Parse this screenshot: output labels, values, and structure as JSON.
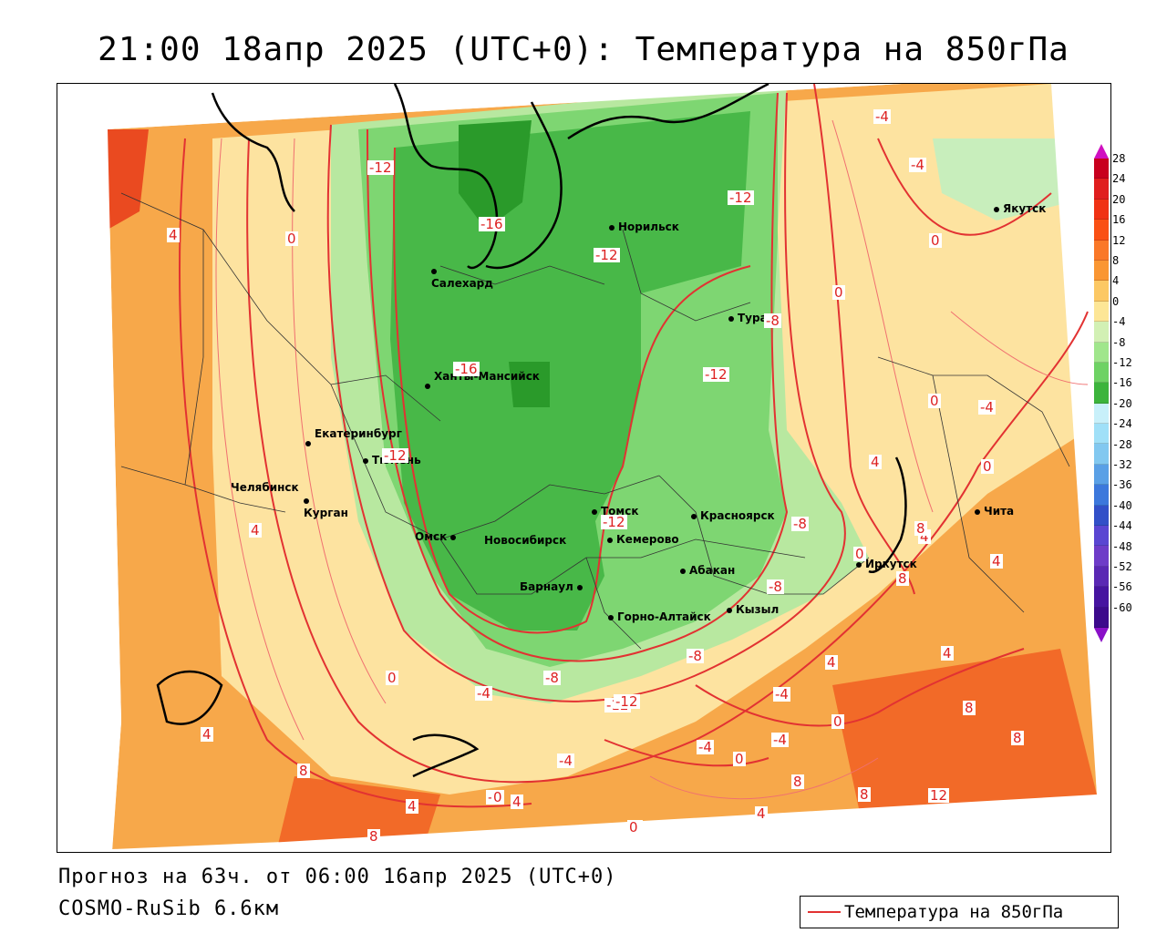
{
  "title": "21:00 18апр 2025 (UTC+0): Температура на 850гПа",
  "footer": {
    "forecast": "Прогноз на 63ч. от 06:00 16апр 2025 (UTC+0)",
    "model": "COSMO-RuSib 6.6км"
  },
  "legend": {
    "line_label": "Температура на 850гПа",
    "line_color": "#e23232"
  },
  "color_scale": {
    "ticks": [
      "28",
      "24",
      "20",
      "16",
      "12",
      "8",
      "4",
      "0",
      "-4",
      "-8",
      "-12",
      "-16",
      "-20",
      "-24",
      "-28",
      "-32",
      "-36",
      "-40",
      "-44",
      "-48",
      "-52",
      "-56",
      "-60"
    ],
    "colors": [
      "#c8001e",
      "#e01e1e",
      "#f03214",
      "#fa5014",
      "#fa7828",
      "#fa9632",
      "#fcc864",
      "#fde696",
      "#d2f0b4",
      "#a0e68c",
      "#6ed264",
      "#3cb43c",
      "#c8f0fa",
      "#a0e0f8",
      "#82c8f0",
      "#5aa0e6",
      "#3c78dc",
      "#3250c8",
      "#5a46d2",
      "#6e3cc8",
      "#5a28b4",
      "#4614a0",
      "#3c0a8c"
    ],
    "colors_note": "top to bottom"
  },
  "cities": [
    {
      "name": "Норильск"
    },
    {
      "name": "Салехард"
    },
    {
      "name": "Тура"
    },
    {
      "name": "Якутск"
    },
    {
      "name": "Ханты-Мансийск"
    },
    {
      "name": "Екатеринбург"
    },
    {
      "name": "Тюмень"
    },
    {
      "name": "Челябинск"
    },
    {
      "name": "Курган"
    },
    {
      "name": "Омск"
    },
    {
      "name": "Новосибирск"
    },
    {
      "name": "Томск"
    },
    {
      "name": "Кемерово"
    },
    {
      "name": "Красноярск"
    },
    {
      "name": "Абакан"
    },
    {
      "name": "Барнаул"
    },
    {
      "name": "Горно-Алтайск"
    },
    {
      "name": "Кызыл"
    },
    {
      "name": "Иркутск"
    },
    {
      "name": "Чита"
    }
  ],
  "contour_labels": [
    "-12",
    "4",
    "0",
    "-16",
    "-12",
    "-12",
    "-4",
    "-4",
    "0",
    "0",
    "-8",
    "-16",
    "-12",
    "-12",
    "0",
    "-4",
    "4",
    "0",
    "-12",
    "-8",
    "-12",
    "4",
    "-8",
    "0",
    "8",
    "4",
    "-4",
    "4",
    "0",
    "-8",
    "-4",
    "-4",
    "4",
    "8",
    "-12",
    "-8",
    "-4",
    "0",
    "-4",
    "-4",
    "0",
    "4",
    "4",
    "8",
    "0",
    "8",
    "8",
    "4",
    "8",
    "4",
    "0",
    "8",
    "12",
    "8",
    "4",
    "0"
  ]
}
